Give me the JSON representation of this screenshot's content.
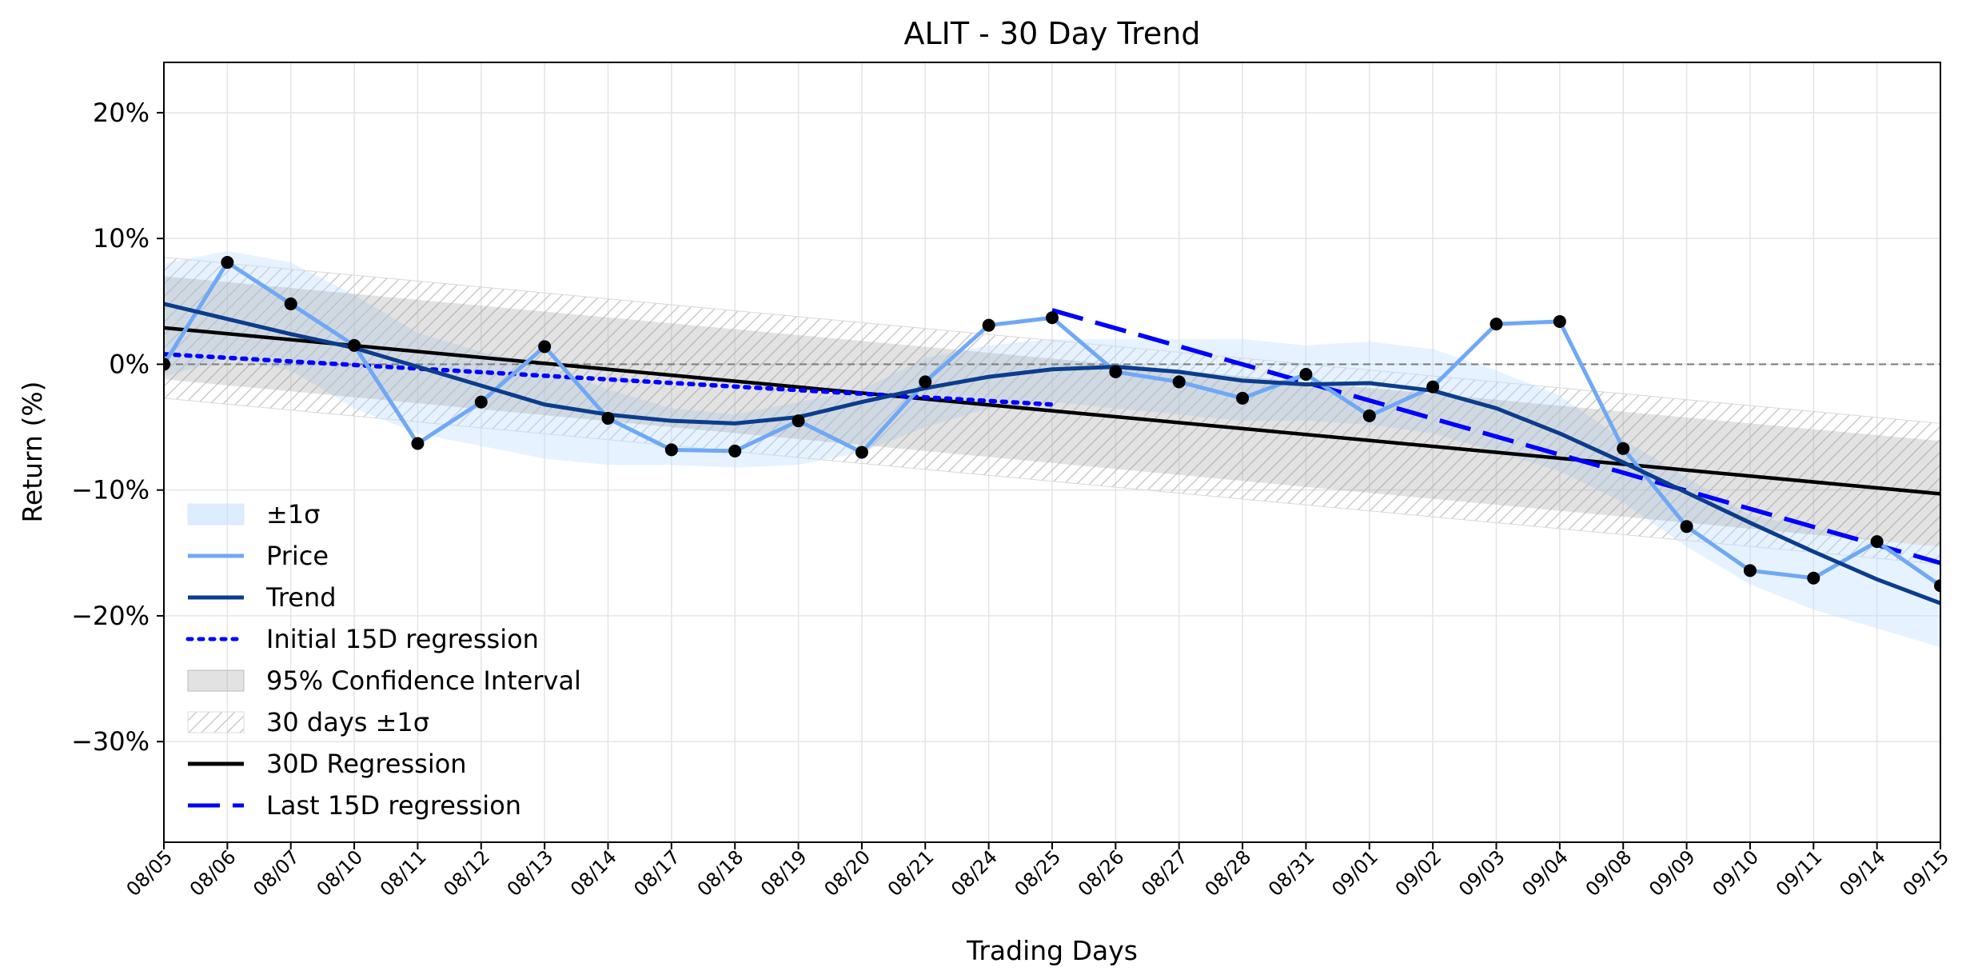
{
  "chart_data": {
    "type": "line",
    "title": "ALIT - 30 Day Trend",
    "xlabel": "Trading Days",
    "ylabel": "Return (%)",
    "ylim": [
      -38,
      24
    ],
    "y_ticks": [
      -30,
      -20,
      -10,
      0,
      10,
      20
    ],
    "y_tick_labels": [
      "−30%",
      "−20%",
      "−10%",
      "0%",
      "10%",
      "20%"
    ],
    "grid": true,
    "legend_position": "lower-left",
    "categories": [
      "08/05",
      "08/06",
      "08/07",
      "08/10",
      "08/11",
      "08/12",
      "08/13",
      "08/14",
      "08/17",
      "08/18",
      "08/19",
      "08/20",
      "08/21",
      "08/24",
      "08/25",
      "08/26",
      "08/27",
      "08/28",
      "08/31",
      "09/01",
      "09/02",
      "09/03",
      "09/04",
      "09/08",
      "09/09",
      "09/10",
      "09/11",
      "09/14",
      "09/15"
    ],
    "series": [
      {
        "name": "Price",
        "color": "#6fa8f5",
        "values": [
          0.0,
          8.1,
          4.8,
          1.5,
          -6.3,
          -3.0,
          1.4,
          -4.3,
          -6.8,
          -6.9,
          -4.5,
          -7.0,
          -1.4,
          3.1,
          3.7,
          -0.6,
          -1.4,
          -2.7,
          -0.8,
          -4.1,
          -1.8,
          3.2,
          3.4,
          -6.7,
          -12.9,
          -16.4,
          -17.0,
          -14.1,
          -17.6
        ]
      },
      {
        "name": "Trend",
        "color": "#0b3d8c",
        "values": [
          4.8,
          3.6,
          2.4,
          1.3,
          -0.2,
          -1.7,
          -3.2,
          -4.0,
          -4.5,
          -4.7,
          -4.2,
          -3.0,
          -1.9,
          -1.0,
          -0.4,
          -0.2,
          -0.6,
          -1.3,
          -1.6,
          -1.5,
          -2.1,
          -3.5,
          -5.5,
          -7.8,
          -10.2,
          -12.6,
          -14.9,
          -17.1,
          -19.0
        ]
      },
      {
        "name": "Initial 15D regression",
        "color": "#0000ff",
        "x_range": [
          0,
          14
        ],
        "y_range": [
          0.8,
          -3.2
        ]
      },
      {
        "name": "Last 15D regression",
        "color": "#0000ff",
        "x_range": [
          14,
          28
        ],
        "y_range": [
          4.3,
          -15.8
        ]
      },
      {
        "name": "30D Regression",
        "color": "#000000",
        "x_range": [
          0,
          28
        ],
        "y_range": [
          2.9,
          -10.3
        ]
      }
    ],
    "sigma_band": {
      "name": "±1σ",
      "upper": [
        8.0,
        9.0,
        8.1,
        5.5,
        2.5,
        1.0,
        0.0,
        -2.0,
        -3.5,
        -4.0,
        -3.0,
        -2.0,
        0.5,
        1.5,
        2.0,
        2.0,
        2.0,
        2.0,
        1.5,
        1.8,
        1.2,
        -0.5,
        -2.5,
        -6.0,
        -9.0,
        -12.0,
        -13.0,
        -14.0,
        -14.5
      ],
      "lower": [
        -1.0,
        0.5,
        -0.5,
        -3.5,
        -5.5,
        -6.5,
        -7.5,
        -8.0,
        -8.0,
        -8.2,
        -8.0,
        -7.0,
        -5.0,
        -3.5,
        -3.0,
        -3.5,
        -4.0,
        -4.5,
        -4.5,
        -4.8,
        -5.5,
        -7.0,
        -8.5,
        -11.0,
        -14.5,
        -17.5,
        -19.5,
        -21.0,
        -22.5
      ]
    },
    "confidence_interval": {
      "name": "95% Confidence Interval",
      "upper_range": [
        7.0,
        -6.1
      ],
      "lower_range": [
        -1.2,
        -14.5
      ]
    },
    "thirty_day_sigma": {
      "name": "30 days ±1σ",
      "upper_range": [
        8.5,
        -4.7
      ],
      "lower_range": [
        -2.7,
        -15.9
      ]
    },
    "zero_line": 0,
    "legend": [
      "±1σ",
      "Price",
      "Trend",
      "Initial 15D regression",
      "95% Confidence Interval",
      "30 days ±1σ",
      "30D Regression",
      "Last 15D regression"
    ]
  }
}
